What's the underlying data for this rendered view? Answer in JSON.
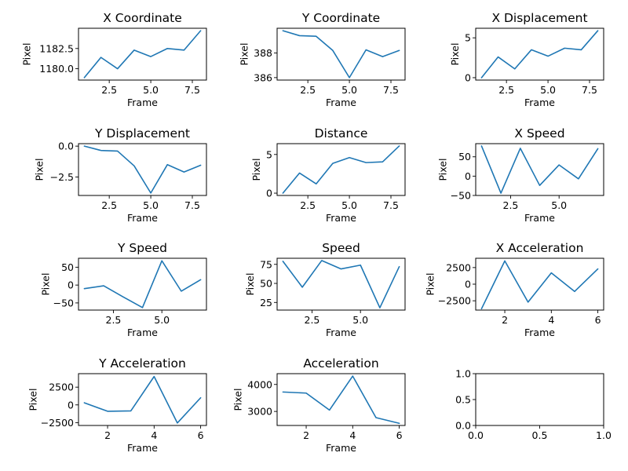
{
  "line_color": "#1f77b4",
  "chart_data": [
    {
      "type": "line",
      "title": "X Coordinate",
      "xlabel": "Frame",
      "ylabel": "Pixel",
      "x": [
        1,
        2,
        3,
        4,
        5,
        6,
        7,
        8
      ],
      "y": [
        1178.9,
        1181.4,
        1180.0,
        1182.3,
        1181.5,
        1182.5,
        1182.3,
        1184.7
      ],
      "xlim": [
        0.65,
        8.35
      ],
      "ylim": [
        1178.6,
        1185.0
      ],
      "xticks": [
        2.5,
        5.0,
        7.5
      ],
      "xtick_labels": [
        "2.5",
        "5.0",
        "7.5"
      ],
      "yticks": [
        1180.0,
        1182.5
      ],
      "ytick_labels": [
        "1180.0",
        "1182.5"
      ]
    },
    {
      "type": "line",
      "title": "Y Coordinate",
      "xlabel": "Frame",
      "ylabel": "Pixel",
      "x": [
        1,
        2,
        3,
        4,
        5,
        6,
        7,
        8
      ],
      "y": [
        389.8,
        389.4,
        389.35,
        388.2,
        386.0,
        388.25,
        387.7,
        388.2
      ],
      "xlim": [
        0.65,
        8.35
      ],
      "ylim": [
        385.8,
        390.0
      ],
      "xticks": [
        2.5,
        5.0,
        7.5
      ],
      "xtick_labels": [
        "2.5",
        "5.0",
        "7.5"
      ],
      "yticks": [
        386,
        388
      ],
      "ytick_labels": [
        "386",
        "388"
      ]
    },
    {
      "type": "line",
      "title": "X Displacement",
      "xlabel": "Frame",
      "ylabel": "Pixel",
      "x": [
        1,
        2,
        3,
        4,
        5,
        6,
        7,
        8
      ],
      "y": [
        0.0,
        2.6,
        1.1,
        3.5,
        2.7,
        3.7,
        3.5,
        5.9
      ],
      "xlim": [
        0.65,
        8.35
      ],
      "ylim": [
        -0.3,
        6.2
      ],
      "xticks": [
        2.5,
        5.0,
        7.5
      ],
      "xtick_labels": [
        "2.5",
        "5.0",
        "7.5"
      ],
      "yticks": [
        0,
        5
      ],
      "ytick_labels": [
        "0",
        "5"
      ]
    },
    {
      "type": "line",
      "title": "Y Displacement",
      "xlabel": "Frame",
      "ylabel": "Pixel",
      "x": [
        1,
        2,
        3,
        4,
        5,
        6,
        7,
        8
      ],
      "y": [
        0.0,
        -0.35,
        -0.4,
        -1.6,
        -3.8,
        -1.5,
        -2.1,
        -1.55
      ],
      "xlim": [
        0.65,
        8.35
      ],
      "ylim": [
        -4.0,
        0.2
      ],
      "xticks": [
        2.5,
        5.0,
        7.5
      ],
      "xtick_labels": [
        "2.5",
        "5.0",
        "7.5"
      ],
      "yticks": [
        -2.5,
        0.0
      ],
      "ytick_labels": [
        "−2.5",
        "0.0"
      ]
    },
    {
      "type": "line",
      "title": "Distance",
      "xlabel": "Frame",
      "ylabel": "Pixel",
      "x": [
        1,
        2,
        3,
        4,
        5,
        6,
        7,
        8
      ],
      "y": [
        0.0,
        2.6,
        1.2,
        3.85,
        4.6,
        3.95,
        4.05,
        6.1
      ],
      "xlim": [
        0.65,
        8.35
      ],
      "ylim": [
        -0.3,
        6.4
      ],
      "xticks": [
        2.5,
        5.0,
        7.5
      ],
      "xtick_labels": [
        "2.5",
        "5.0",
        "7.5"
      ],
      "yticks": [
        0,
        5
      ],
      "ytick_labels": [
        "0",
        "5"
      ]
    },
    {
      "type": "line",
      "title": "X Speed",
      "xlabel": "Frame",
      "ylabel": "Pixel",
      "x": [
        1,
        2,
        3,
        4,
        5,
        6,
        7
      ],
      "y": [
        78,
        -44,
        72,
        -24,
        29,
        -7,
        71
      ],
      "xlim": [
        0.7,
        7.3
      ],
      "ylim": [
        -50,
        84
      ],
      "xticks": [
        2.5,
        5.0
      ],
      "xtick_labels": [
        "2.5",
        "5.0"
      ],
      "yticks": [
        -50,
        0,
        50
      ],
      "ytick_labels": [
        "−50",
        "0",
        "50"
      ]
    },
    {
      "type": "line",
      "title": "Y Speed",
      "xlabel": "Frame",
      "ylabel": "Pixel",
      "x": [
        1,
        2,
        3,
        4,
        5,
        6,
        7
      ],
      "y": [
        -10,
        -2,
        -33,
        -63,
        68,
        -17,
        15
      ],
      "xlim": [
        0.7,
        7.3
      ],
      "ylim": [
        -70,
        75
      ],
      "xticks": [
        2.5,
        5.0
      ],
      "xtick_labels": [
        "2.5",
        "5.0"
      ],
      "yticks": [
        -50,
        0,
        50
      ],
      "ytick_labels": [
        "−50",
        "0",
        "50"
      ]
    },
    {
      "type": "line",
      "title": "Speed",
      "xlabel": "Frame",
      "ylabel": "Pixel",
      "x": [
        1,
        2,
        3,
        4,
        5,
        6,
        7
      ],
      "y": [
        79,
        45,
        80,
        69,
        74,
        18,
        72
      ],
      "xlim": [
        0.7,
        7.3
      ],
      "ylim": [
        15,
        83
      ],
      "xticks": [
        2.5,
        5.0
      ],
      "xtick_labels": [
        "2.5",
        "5.0"
      ],
      "yticks": [
        25,
        50,
        75
      ],
      "ytick_labels": [
        "25",
        "50",
        "75"
      ]
    },
    {
      "type": "line",
      "title": "X Acceleration",
      "xlabel": "Frame",
      "ylabel": "Pixel",
      "x": [
        1,
        2,
        3,
        4,
        5,
        6
      ],
      "y": [
        -3700,
        3500,
        -2700,
        1700,
        -1100,
        2300
      ],
      "xlim": [
        0.75,
        6.25
      ],
      "ylim": [
        -3900,
        3900
      ],
      "xticks": [
        2,
        4,
        6
      ],
      "xtick_labels": [
        "2",
        "4",
        "6"
      ],
      "yticks": [
        -2500,
        0,
        2500
      ],
      "ytick_labels": [
        "−2500",
        "0",
        "2500"
      ]
    },
    {
      "type": "line",
      "title": "Y Acceleration",
      "xlabel": "Frame",
      "ylabel": "Pixel",
      "x": [
        1,
        2,
        3,
        4,
        5,
        6
      ],
      "y": [
        300,
        -900,
        -850,
        4000,
        -2550,
        1000
      ],
      "xlim": [
        0.75,
        6.25
      ],
      "ylim": [
        -2900,
        4400
      ],
      "xticks": [
        2,
        4,
        6
      ],
      "xtick_labels": [
        "2",
        "4",
        "6"
      ],
      "yticks": [
        -2500,
        0,
        2500
      ],
      "ytick_labels": [
        "−2500",
        "0",
        "2500"
      ]
    },
    {
      "type": "line",
      "title": "Acceleration",
      "xlabel": "Frame",
      "ylabel": "Pixel",
      "x": [
        1,
        2,
        3,
        4,
        5,
        6
      ],
      "y": [
        3720,
        3680,
        3050,
        4310,
        2770,
        2560
      ],
      "xlim": [
        0.75,
        6.25
      ],
      "ylim": [
        2480,
        4400
      ],
      "xticks": [
        2,
        4,
        6
      ],
      "xtick_labels": [
        "2",
        "4",
        "6"
      ],
      "yticks": [
        3000,
        4000
      ],
      "ytick_labels": [
        "3000",
        "4000"
      ]
    },
    {
      "type": "line",
      "title": "",
      "xlabel": "",
      "ylabel": "",
      "x": [],
      "y": [],
      "xlim": [
        0.0,
        1.0
      ],
      "ylim": [
        0.0,
        1.0
      ],
      "xticks": [
        0.0,
        0.5,
        1.0
      ],
      "xtick_labels": [
        "0.0",
        "0.5",
        "1.0"
      ],
      "yticks": [
        0.0,
        0.5,
        1.0
      ],
      "ytick_labels": [
        "0.0",
        "0.5",
        "1.0"
      ]
    }
  ]
}
